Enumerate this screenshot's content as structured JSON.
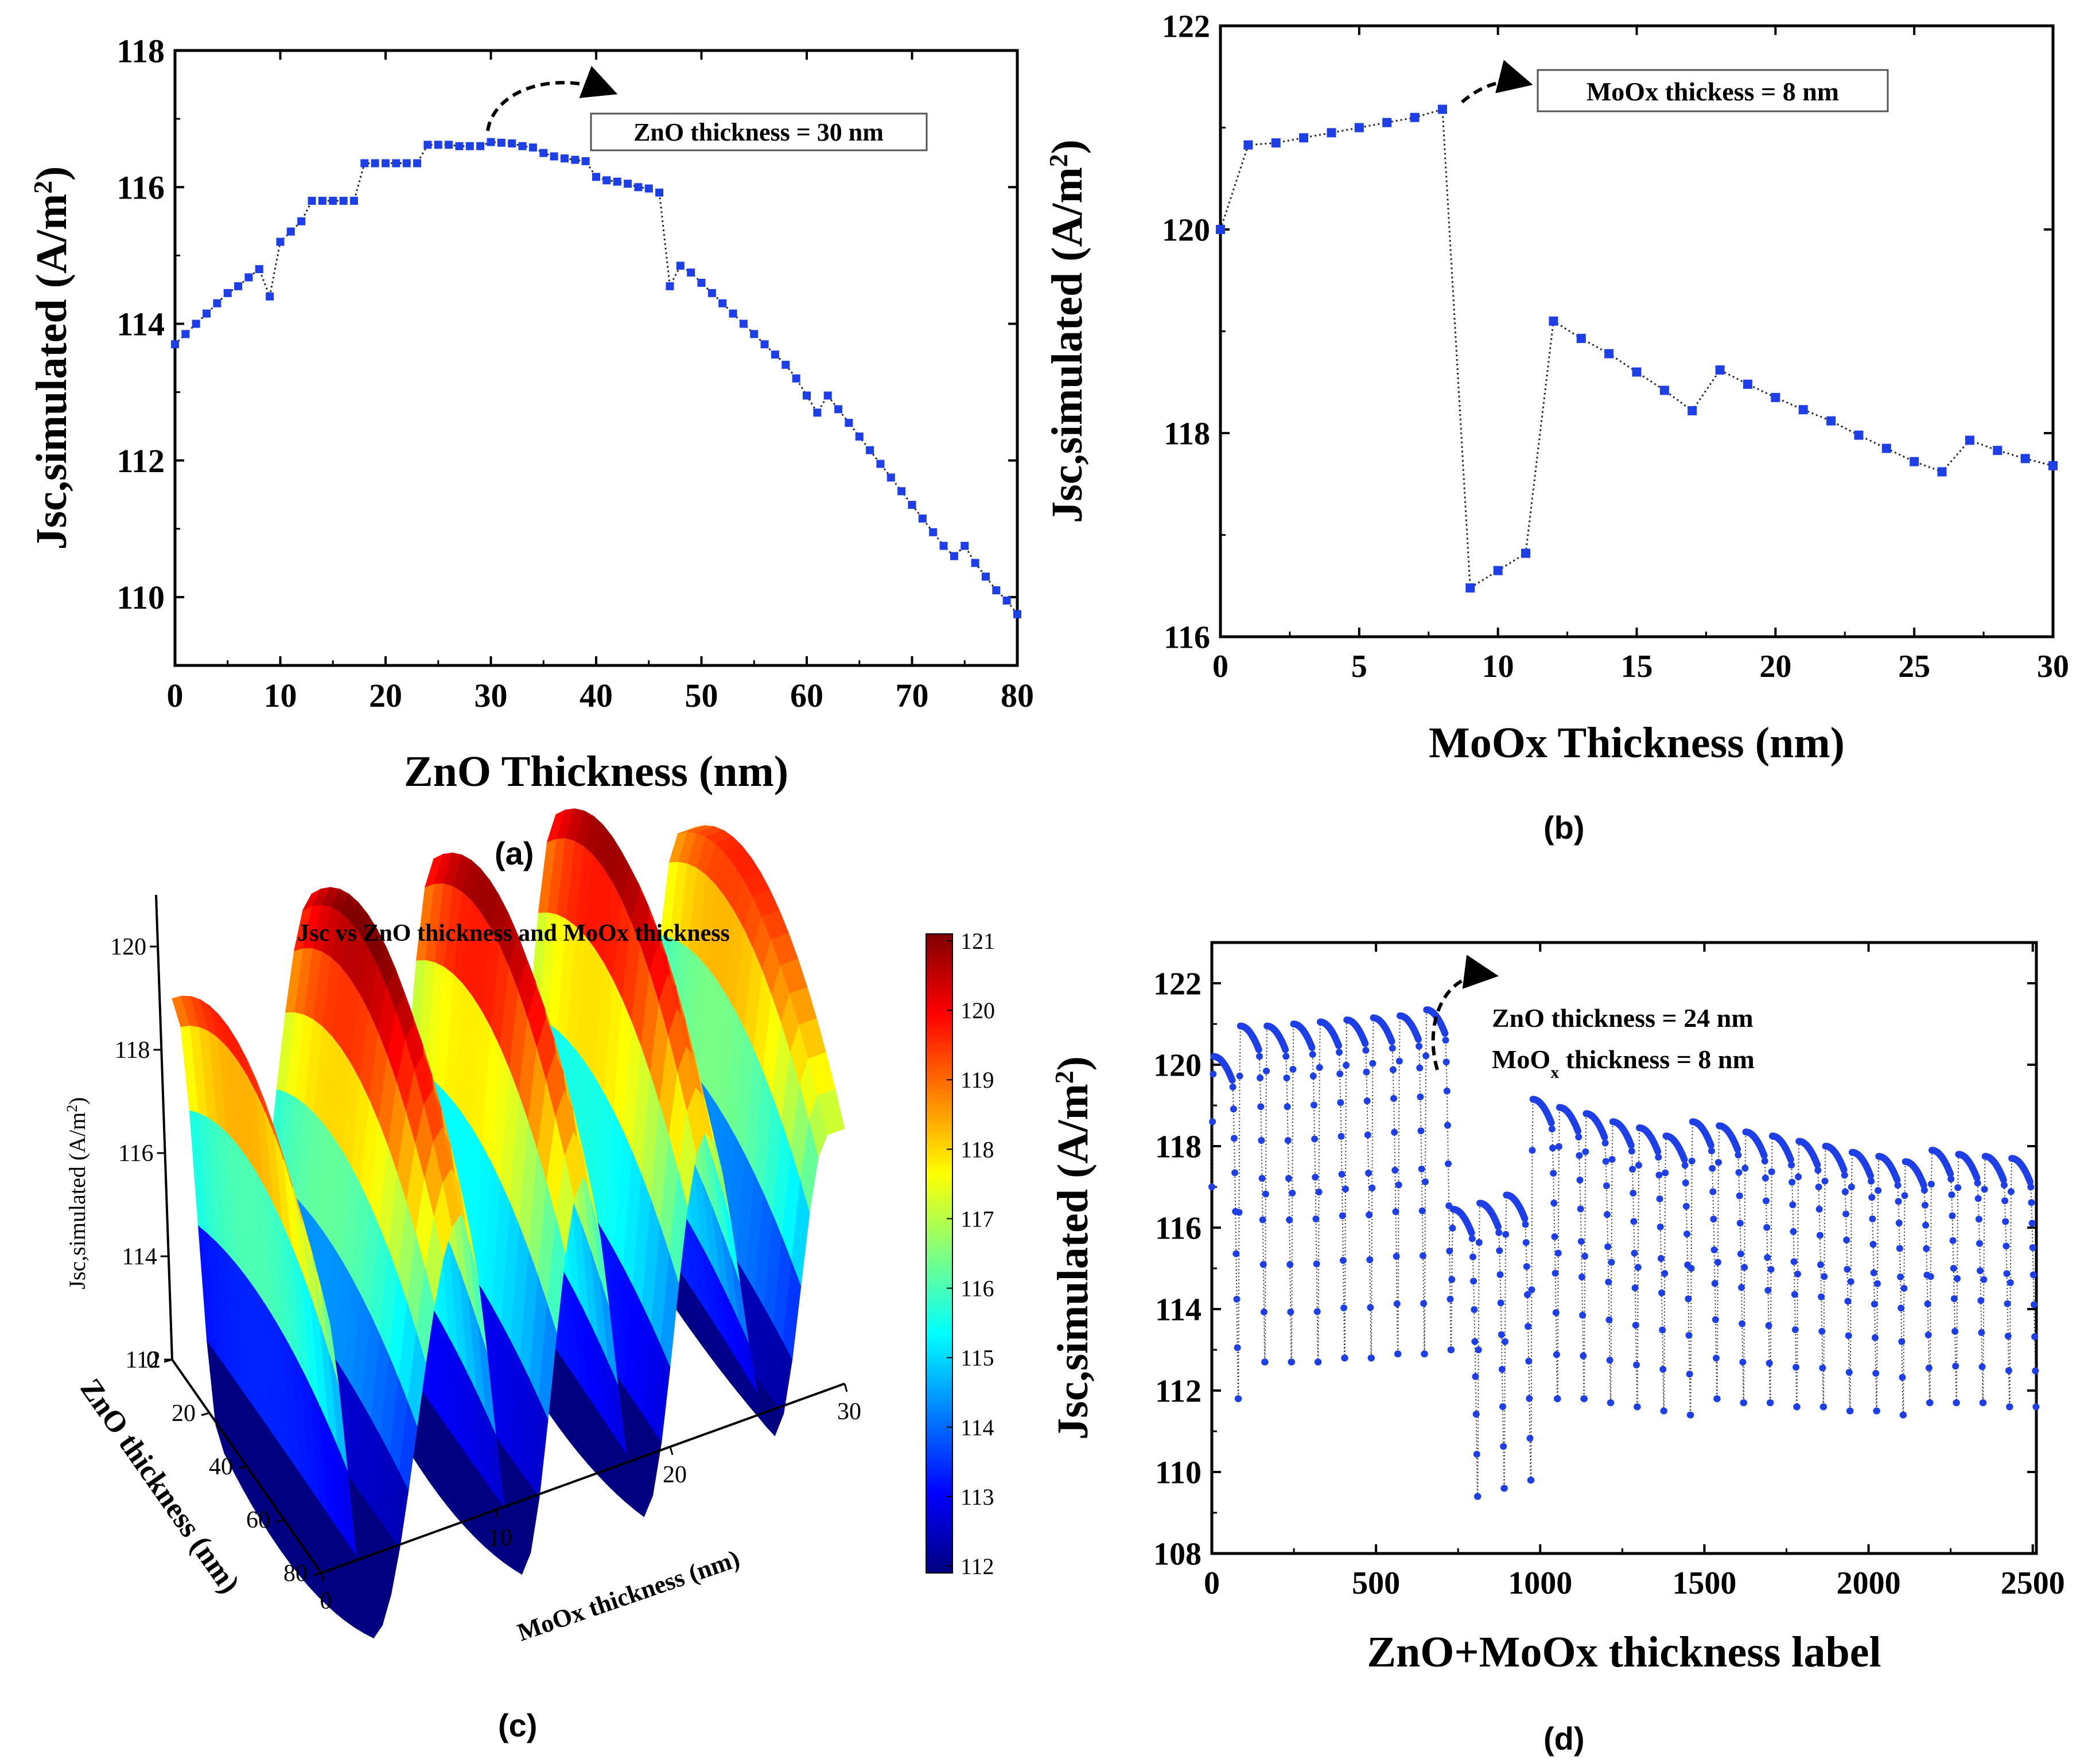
{
  "figure": {
    "panel_labels": [
      "(a)",
      "(b)",
      "(c)",
      "(d)"
    ]
  },
  "chart_data": [
    {
      "id": "a",
      "type": "line",
      "marker": "square",
      "xlabel": "ZnO Thickness (nm)",
      "ylabel": "Jsc,simulated (A/m",
      "ylabel_sup": "2",
      "ylabel_tail": ")",
      "xlim": [
        0,
        80
      ],
      "ylim": [
        109,
        118
      ],
      "xticks": [
        0,
        10,
        20,
        30,
        40,
        50,
        60,
        70,
        80
      ],
      "yticks": [
        110,
        112,
        114,
        116,
        118
      ],
      "annotation": "ZnO thickness = 30 nm",
      "x": [
        0,
        1,
        2,
        3,
        4,
        5,
        6,
        7,
        8,
        9,
        10,
        11,
        12,
        13,
        14,
        15,
        16,
        17,
        18,
        19,
        20,
        21,
        22,
        23,
        24,
        25,
        26,
        27,
        28,
        29,
        30,
        31,
        32,
        33,
        34,
        35,
        36,
        37,
        38,
        39,
        40,
        41,
        42,
        43,
        44,
        45,
        46,
        47,
        48,
        49,
        50,
        51,
        52,
        53,
        54,
        55,
        56,
        57,
        58,
        59,
        60,
        61,
        62,
        63,
        64,
        65,
        66,
        67,
        68,
        69,
        70,
        71,
        72,
        73,
        74,
        75,
        76,
        77,
        78,
        79,
        80
      ],
      "y": [
        113.7,
        113.85,
        114.0,
        114.15,
        114.3,
        114.45,
        114.55,
        114.68,
        114.8,
        114.4,
        115.2,
        115.35,
        115.5,
        115.8,
        115.8,
        115.8,
        115.8,
        115.8,
        116.35,
        116.35,
        116.35,
        116.35,
        116.35,
        116.35,
        116.62,
        116.62,
        116.62,
        116.6,
        116.6,
        116.6,
        116.66,
        116.65,
        116.64,
        116.6,
        116.58,
        116.5,
        116.45,
        116.42,
        116.4,
        116.38,
        116.15,
        116.1,
        116.08,
        116.05,
        116.0,
        115.98,
        115.92,
        114.55,
        114.85,
        114.75,
        114.6,
        114.45,
        114.3,
        114.15,
        114.0,
        113.85,
        113.7,
        113.55,
        113.4,
        113.2,
        112.95,
        112.7,
        112.95,
        112.75,
        112.55,
        112.35,
        112.15,
        111.95,
        111.75,
        111.55,
        111.35,
        111.15,
        110.95,
        110.75,
        110.6,
        110.75,
        110.5,
        110.3,
        110.1,
        109.95,
        109.75
      ]
    },
    {
      "id": "b",
      "type": "line",
      "marker": "square",
      "xlabel": "MoOx Thickness (nm)",
      "ylabel": "Jsc,simulated (A/m",
      "ylabel_sup": "2",
      "ylabel_tail": ")",
      "xlim": [
        0,
        30
      ],
      "ylim": [
        116,
        122
      ],
      "xticks": [
        0,
        5,
        10,
        15,
        20,
        25,
        30
      ],
      "yticks": [
        116,
        118,
        120,
        122
      ],
      "annotation": "MoOx thickess = 8 nm",
      "x": [
        0,
        1,
        2,
        3,
        4,
        5,
        6,
        7,
        8,
        9,
        10,
        11,
        12,
        13,
        14,
        15,
        16,
        17,
        18,
        19,
        20,
        21,
        22,
        23,
        24,
        25,
        26,
        27,
        28,
        29,
        30
      ],
      "y": [
        120.0,
        120.83,
        120.85,
        120.9,
        120.95,
        121.0,
        121.05,
        121.1,
        121.18,
        116.48,
        116.65,
        116.82,
        119.1,
        118.93,
        118.78,
        118.6,
        118.42,
        118.22,
        118.62,
        118.48,
        118.35,
        118.23,
        118.12,
        117.98,
        117.85,
        117.72,
        117.62,
        117.93,
        117.83,
        117.75,
        117.68
      ]
    },
    {
      "id": "c",
      "type": "surface3d",
      "title": "Jsc vs ZnO thickness and MoOx thickness",
      "xlabel": "MoOx thickness (nm)",
      "ylabel": "ZnO thickness (nm)",
      "zlabel": "Jsc,simulated (A/m",
      "zlabel_sup": "2",
      "zlabel_tail": ")",
      "xticks": [
        0,
        10,
        20,
        30
      ],
      "yticks": [
        0,
        20,
        40,
        60,
        80
      ],
      "zticks": [
        112,
        114,
        116,
        118,
        120
      ],
      "colorbar_ticks": [
        121,
        120,
        119,
        118,
        117,
        116,
        115,
        114,
        113,
        112
      ],
      "crest_x": [
        0,
        8,
        15,
        22,
        29
      ],
      "crest_z": [
        120.0,
        121.2,
        121.0,
        121.0,
        119.6
      ],
      "trough_x": [
        3,
        11.5,
        18.5,
        26
      ],
      "trough_z": [
        109.5,
        109.8,
        110.2,
        111.2
      ]
    },
    {
      "id": "d",
      "type": "line",
      "marker": "circle",
      "xlabel": "ZnO+MoOx thickness label",
      "ylabel": "Jsc,simulated (A/m",
      "ylabel_sup": "2",
      "ylabel_tail": ")",
      "xlim": [
        0,
        2511
      ],
      "ylim": [
        108,
        123
      ],
      "xticks": [
        0,
        500,
        1000,
        1500,
        2000,
        2500
      ],
      "yticks": [
        108,
        110,
        112,
        114,
        116,
        118,
        120,
        122
      ],
      "annotation_line1": "ZnO thickness    = 24 nm",
      "annotation_line2_a": "MoO",
      "annotation_line2_sub": "x",
      "annotation_line2_b": " thickness = 8 nm",
      "segment_width": 81,
      "peaks": [
        120.2,
        120.95,
        120.95,
        121.0,
        121.05,
        121.1,
        121.15,
        121.2,
        121.35,
        116.45,
        116.6,
        116.8,
        119.15,
        118.95,
        118.8,
        118.6,
        118.45,
        118.25,
        118.6,
        118.5,
        118.35,
        118.25,
        118.12,
        118.0,
        117.85,
        117.75,
        117.62,
        117.9,
        117.8,
        117.75,
        117.7
      ],
      "troughs": [
        117.0,
        111.8,
        112.7,
        112.7,
        112.7,
        112.8,
        112.8,
        112.9,
        112.9,
        113.0,
        109.4,
        109.6,
        109.8,
        111.8,
        111.8,
        111.7,
        111.6,
        111.5,
        111.4,
        111.8,
        111.7,
        111.7,
        111.6,
        111.6,
        111.5,
        111.5,
        111.4,
        111.7,
        111.7,
        111.7,
        111.6
      ]
    }
  ]
}
